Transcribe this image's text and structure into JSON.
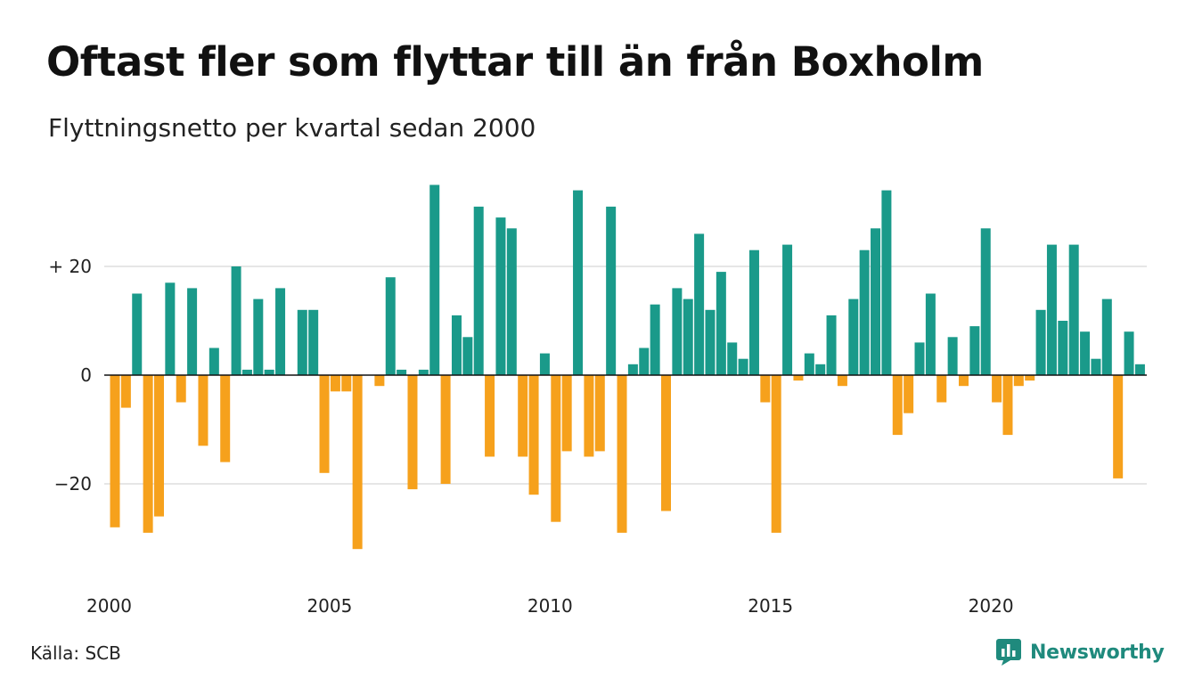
{
  "header": {
    "title": "Oftast fler som flyttar till än från Boxholm",
    "subtitle": "Flyttningsnetto per kvartal sedan 2000"
  },
  "footer": {
    "source": "Källa: SCB",
    "brand": "Newsworthy",
    "brand_icon": "newsworthy-logo-icon"
  },
  "colors": {
    "positive": "#1a9a8a",
    "negative": "#f6a11c",
    "grid": "#dddddd",
    "brand": "#1f8a7d"
  },
  "chart_data": {
    "type": "bar",
    "title": "Oftast fler som flyttar till än från Boxholm",
    "subtitle": "Flyttningsnetto per kvartal sedan 2000",
    "xlabel": "",
    "ylabel": "",
    "x_start_year": 2000,
    "periods_per_year": 4,
    "ylim": [
      -37,
      37
    ],
    "grid": true,
    "y_ticks": [
      {
        "value": 20,
        "label": "+ 20"
      },
      {
        "value": 0,
        "label": "0"
      },
      {
        "value": -20,
        "label": "−20"
      }
    ],
    "x_ticks": [
      {
        "year": 2000,
        "label": "2000"
      },
      {
        "year": 2005,
        "label": "2005"
      },
      {
        "year": 2010,
        "label": "2010"
      },
      {
        "year": 2015,
        "label": "2015"
      },
      {
        "year": 2020,
        "label": "2020"
      }
    ],
    "categories": [
      "2000 K1",
      "2000 K2",
      "2000 K3",
      "2000 K4",
      "2001 K1",
      "2001 K2",
      "2001 K3",
      "2001 K4",
      "2002 K1",
      "2002 K2",
      "2002 K3",
      "2002 K4",
      "2003 K1",
      "2003 K2",
      "2003 K3",
      "2003 K4",
      "2004 K1",
      "2004 K2",
      "2004 K3",
      "2004 K4",
      "2005 K1",
      "2005 K2",
      "2005 K3",
      "2005 K4",
      "2006 K1",
      "2006 K2",
      "2006 K3",
      "2006 K4",
      "2007 K1",
      "2007 K2",
      "2007 K3",
      "2007 K4",
      "2008 K1",
      "2008 K2",
      "2008 K3",
      "2008 K4",
      "2009 K1",
      "2009 K2",
      "2009 K3",
      "2009 K4",
      "2010 K1",
      "2010 K2",
      "2010 K3",
      "2010 K4",
      "2011 K1",
      "2011 K2",
      "2011 K3",
      "2011 K4",
      "2012 K1",
      "2012 K2",
      "2012 K3",
      "2012 K4",
      "2013 K1",
      "2013 K2",
      "2013 K3",
      "2013 K4",
      "2014 K1",
      "2014 K2",
      "2014 K3",
      "2014 K4",
      "2015 K1",
      "2015 K2",
      "2015 K3",
      "2015 K4",
      "2016 K1",
      "2016 K2",
      "2016 K3",
      "2016 K4",
      "2017 K1",
      "2017 K2",
      "2017 K3",
      "2017 K4",
      "2018 K1",
      "2018 K2",
      "2018 K3",
      "2018 K4",
      "2019 K1",
      "2019 K2",
      "2019 K3",
      "2019 K4",
      "2020 K1",
      "2020 K2",
      "2020 K3",
      "2020 K4",
      "2021 K1",
      "2021 K2",
      "2021 K3",
      "2021 K4",
      "2022 K1",
      "2022 K2",
      "2022 K3",
      "2022 K4",
      "2023 K1",
      "2023 K2",
      "2023 K3",
      "2023 K4"
    ],
    "values": [
      -28,
      -6,
      15,
      -29,
      -26,
      17,
      -5,
      16,
      -13,
      5,
      -16,
      20,
      1,
      14,
      1,
      16,
      0,
      12,
      12,
      -18,
      -3,
      -3,
      -32,
      0,
      -2,
      18,
      1,
      -21,
      1,
      35,
      -20,
      11,
      7,
      31,
      -15,
      29,
      27,
      -15,
      -22,
      4,
      -27,
      -14,
      34,
      -15,
      -14,
      31,
      -29,
      2,
      5,
      13,
      -25,
      16,
      14,
      26,
      12,
      19,
      6,
      3,
      23,
      -5,
      -29,
      24,
      -1,
      4,
      2,
      11,
      -2,
      14,
      23,
      27,
      34,
      -11,
      -7,
      6,
      15,
      -5,
      7,
      -2,
      9,
      27,
      -5,
      -11,
      -2,
      -1,
      12,
      24,
      10,
      24,
      8,
      3,
      14,
      -19,
      8,
      2,
      0,
      0
    ]
  }
}
